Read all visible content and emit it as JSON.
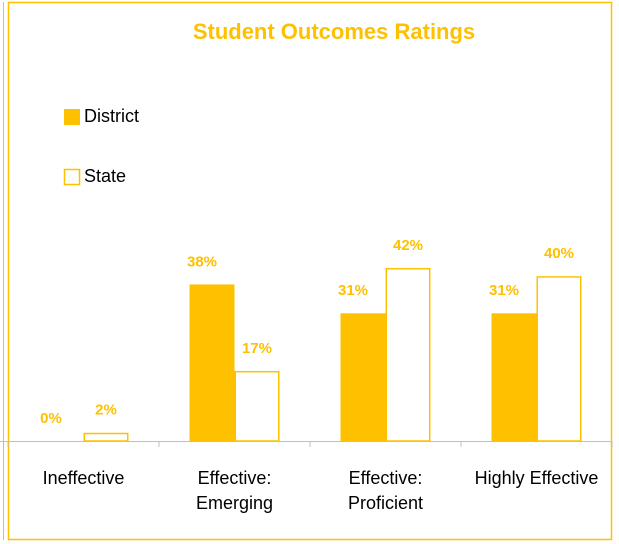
{
  "chart_data": {
    "type": "bar",
    "title": "Student Outcomes Ratings",
    "categories": [
      "Ineffective",
      "Effective: Emerging",
      "Effective: Proficient",
      "Highly Effective"
    ],
    "series": [
      {
        "name": "District",
        "color": "#ffc000",
        "values": [
          0,
          38,
          31,
          31
        ],
        "value_labels": [
          "0%",
          "38%",
          "31%",
          "31%"
        ]
      },
      {
        "name": "State",
        "color": "#ffc000",
        "values": [
          2,
          17,
          42,
          40
        ],
        "value_labels": [
          "2%",
          "17%",
          "42%",
          "40%"
        ]
      }
    ],
    "ylim": [
      0,
      50
    ]
  }
}
